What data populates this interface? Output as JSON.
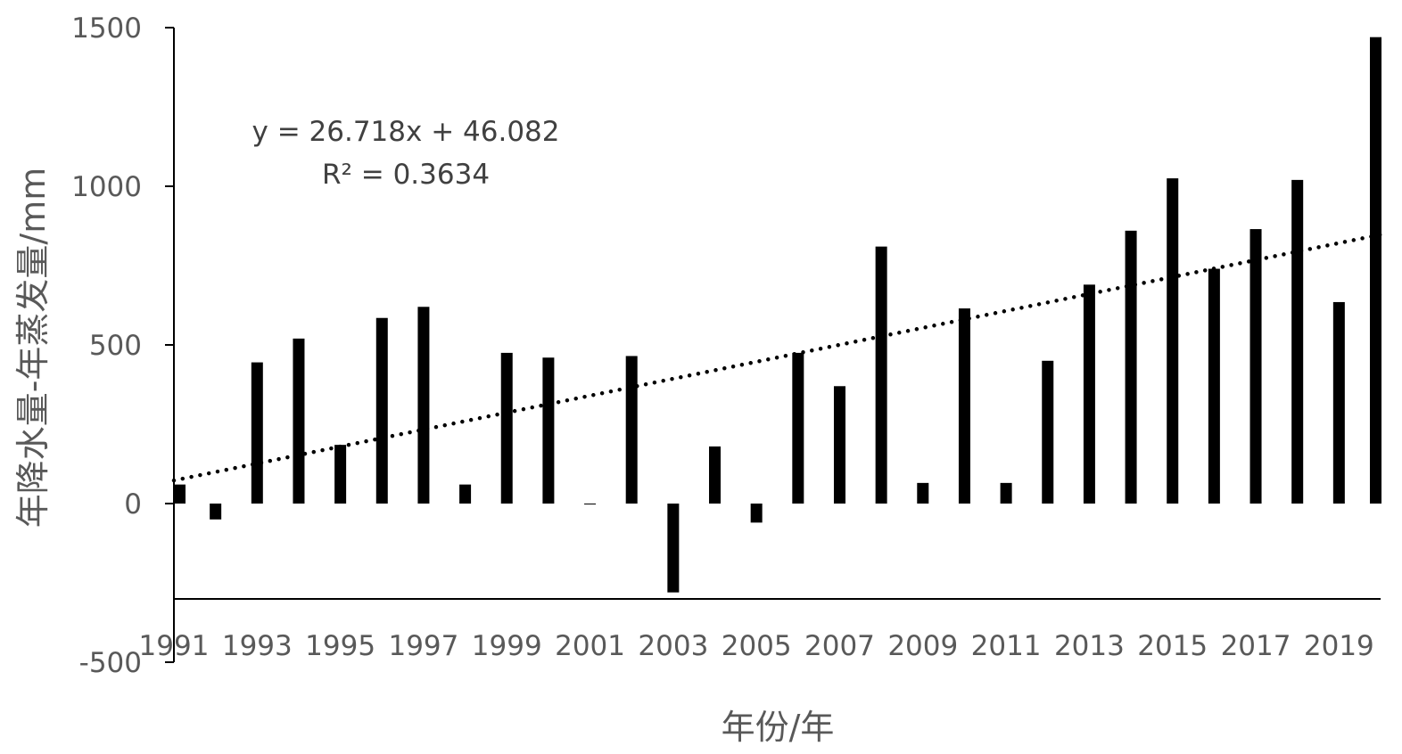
{
  "chart_data": {
    "type": "bar",
    "title": "",
    "xlabel": "年份/年",
    "ylabel": "年降水量-年蒸发量/mm",
    "ylim": [
      -500,
      1500
    ],
    "yticks": [
      "-500",
      "0",
      "500",
      "1000",
      "1500"
    ],
    "x_tick_labels": [
      "1991",
      "1993",
      "1995",
      "1997",
      "1999",
      "2001",
      "2003",
      "2005",
      "2007",
      "2009",
      "2011",
      "2013",
      "2015",
      "2017",
      "2019"
    ],
    "categories": [
      "1991",
      "1992",
      "1993",
      "1994",
      "1995",
      "1996",
      "1997",
      "1998",
      "1999",
      "2000",
      "2001",
      "2002",
      "2003",
      "2004",
      "2005",
      "2006",
      "2007",
      "2008",
      "2009",
      "2010",
      "2011",
      "2012",
      "2013",
      "2014",
      "2015",
      "2016",
      "2017",
      "2018",
      "2019",
      "2020"
    ],
    "values": [
      60,
      -50,
      445,
      520,
      185,
      585,
      620,
      60,
      475,
      460,
      0,
      465,
      -280,
      180,
      -60,
      475,
      370,
      810,
      65,
      615,
      65,
      450,
      690,
      860,
      1025,
      740,
      865,
      1020,
      635,
      1470
    ],
    "grid": false,
    "trendline": {
      "style": "dotted",
      "slope": 26.718,
      "intercept": 46.082,
      "equation": "y = 26.718x + 46.082",
      "r2_label": "R² = 0.3634"
    },
    "colors": {
      "bars": "#000000",
      "axis": "#000000",
      "text": "#595959"
    }
  }
}
